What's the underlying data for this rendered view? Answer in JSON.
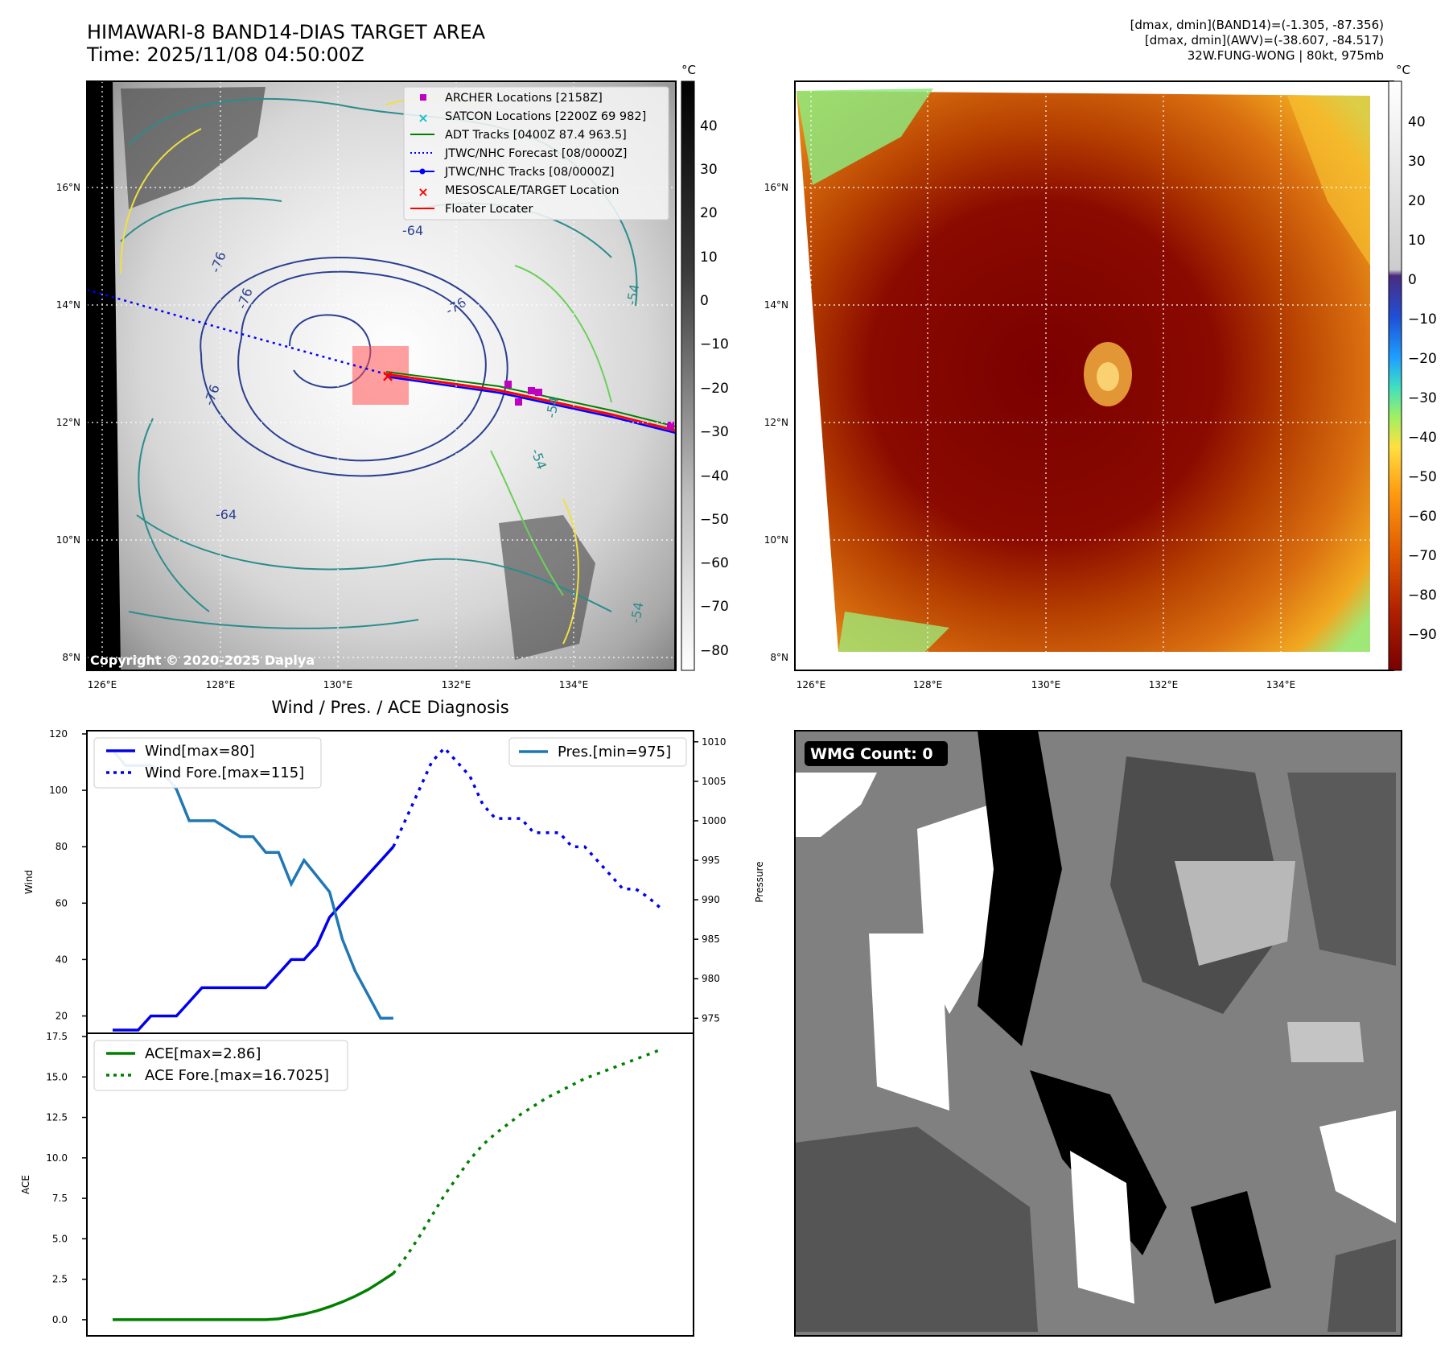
{
  "header": {
    "title_line1": "HIMAWARI-8 BAND14-DIAS TARGET AREA",
    "title_line2": "Time: 2025/11/08 04:50:00Z",
    "stats_line1": "[dmax, dmin](BAND14)=(-1.305, -87.356)",
    "stats_line2": "[dmax, dmin](AWV)=(-38.607, -84.517)",
    "stats_line3": "32W.FUNG-WONG | 80kt, 975mb"
  },
  "map_panel": {
    "lat_labels": [
      "16°N",
      "14°N",
      "12°N",
      "10°N",
      "8°N"
    ],
    "lon_labels": [
      "126°E",
      "128°E",
      "130°E",
      "132°E",
      "134°E"
    ],
    "copyright": "Copyright © 2020-2025 Dapiya",
    "contour_labels": [
      "-64",
      "-76",
      "-76",
      "-76",
      "-64",
      "-54",
      "-54",
      "-54",
      "-54",
      "-76"
    ],
    "legend": [
      {
        "label": "ARCHER Locations [2158Z]",
        "color": "#c000c0",
        "marker": "square"
      },
      {
        "label": "SATCON Locations [2200Z 69 982]",
        "color": "#17becf",
        "marker": "x"
      },
      {
        "label": "ADT Tracks [0400Z 87.4 963.5]",
        "color": "#008000",
        "marker": "line"
      },
      {
        "label": "JTWC/NHC Forecast [08/0000Z]",
        "color": "#0000ff",
        "marker": "dotted"
      },
      {
        "label": "JTWC/NHC Tracks [08/0000Z]",
        "color": "#0000ff",
        "marker": "line-dot"
      },
      {
        "label": "MESOSCALE/TARGET Location",
        "color": "#ff0000",
        "marker": "x"
      },
      {
        "label": "Floater Locater",
        "color": "#ff0000",
        "marker": "line"
      }
    ],
    "colorbar": {
      "unit": "°C",
      "ticks": [
        "40",
        "30",
        "20",
        "10",
        "0",
        "−10",
        "−20",
        "−30",
        "−40",
        "−50",
        "−60",
        "−70",
        "−80"
      ]
    }
  },
  "enhanced_panel": {
    "lat_labels": [
      "16°N",
      "14°N",
      "12°N",
      "10°N",
      "8°N"
    ],
    "lon_labels": [
      "126°E",
      "128°E",
      "130°E",
      "132°E",
      "134°E"
    ],
    "colorbar": {
      "unit": "°C",
      "ticks": [
        "40",
        "30",
        "20",
        "10",
        "0",
        "−10",
        "−20",
        "−30",
        "−40",
        "−50",
        "−60",
        "−70",
        "−80",
        "−90"
      ]
    }
  },
  "diagnosis_title": "Wind / Pres. / ACE Diagnosis",
  "wmg_label": "WMG Count: 0",
  "chart_data": [
    {
      "type": "line",
      "title": "Wind / Pres. / ACE Diagnosis",
      "ylabel": "Wind",
      "y2label": "Pressure",
      "ylim": [
        15,
        120
      ],
      "y2lim": [
        973.5,
        1011
      ],
      "yticks": [
        20,
        40,
        60,
        80,
        100,
        120
      ],
      "y2ticks": [
        975,
        980,
        985,
        990,
        995,
        1000,
        1005,
        1010
      ],
      "series": [
        {
          "name": "Wind[max=80]",
          "style": "solid",
          "color": "#0000ee",
          "x": [
            0,
            1,
            2,
            3,
            4,
            5,
            6,
            7,
            8,
            9,
            10,
            11,
            12,
            13,
            14,
            15,
            16,
            17,
            18,
            19,
            20,
            21,
            22
          ],
          "values": [
            15,
            15,
            15,
            20,
            20,
            20,
            25,
            30,
            30,
            30,
            30,
            30,
            30,
            35,
            40,
            40,
            45,
            55,
            60,
            65,
            70,
            75,
            80
          ]
        },
        {
          "name": "Wind Fore.[max=115]",
          "style": "dotted",
          "color": "#0000ee",
          "x": [
            22,
            23,
            24,
            25,
            26,
            27,
            28,
            29,
            30,
            31,
            32,
            33,
            34,
            35,
            36,
            37,
            38,
            39,
            40,
            41,
            42,
            43
          ],
          "values": [
            80,
            90,
            100,
            110,
            115,
            110,
            105,
            95,
            90,
            90,
            90,
            85,
            85,
            85,
            80,
            80,
            75,
            70,
            65,
            65,
            62,
            58
          ]
        },
        {
          "name": "Pres.[min=975]",
          "style": "solid",
          "color": "#1f77b4",
          "axis": "right",
          "x": [
            0,
            1,
            2,
            3,
            4,
            5,
            6,
            7,
            8,
            9,
            10,
            11,
            12,
            13,
            14,
            15,
            16,
            17,
            18,
            19,
            20,
            21,
            22
          ],
          "values": [
            1009,
            1007,
            1007,
            1007,
            1006,
            1004,
            1000,
            1000,
            1000,
            999,
            998,
            998,
            996,
            996,
            992,
            995,
            993,
            991,
            985,
            981,
            978,
            975,
            975
          ]
        }
      ]
    },
    {
      "type": "line",
      "ylabel": "ACE",
      "ylim": [
        -0.8,
        17.5
      ],
      "yticks": [
        0.0,
        2.5,
        5.0,
        7.5,
        10.0,
        12.5,
        15.0,
        17.5
      ],
      "series": [
        {
          "name": "ACE[max=2.86]",
          "style": "solid",
          "color": "#008000",
          "x": [
            0,
            1,
            2,
            3,
            4,
            5,
            6,
            7,
            8,
            9,
            10,
            11,
            12,
            13,
            14,
            15,
            16,
            17,
            18,
            19,
            20,
            21,
            22
          ],
          "values": [
            0,
            0,
            0,
            0,
            0,
            0,
            0,
            0,
            0,
            0,
            0,
            0,
            0,
            0.05,
            0.2,
            0.35,
            0.55,
            0.8,
            1.1,
            1.45,
            1.85,
            2.35,
            2.86
          ]
        },
        {
          "name": "ACE Fore.[max=16.7025]",
          "style": "dotted",
          "color": "#008000",
          "x": [
            22,
            23,
            24,
            25,
            26,
            27,
            28,
            29,
            30,
            31,
            32,
            33,
            34,
            35,
            36,
            37,
            38,
            39,
            40,
            41,
            42,
            43
          ],
          "values": [
            2.86,
            3.9,
            5.1,
            6.4,
            7.7,
            8.8,
            9.9,
            10.8,
            11.5,
            12.1,
            12.7,
            13.2,
            13.7,
            14.1,
            14.5,
            14.9,
            15.2,
            15.5,
            15.8,
            16.1,
            16.4,
            16.7025
          ]
        }
      ]
    }
  ]
}
